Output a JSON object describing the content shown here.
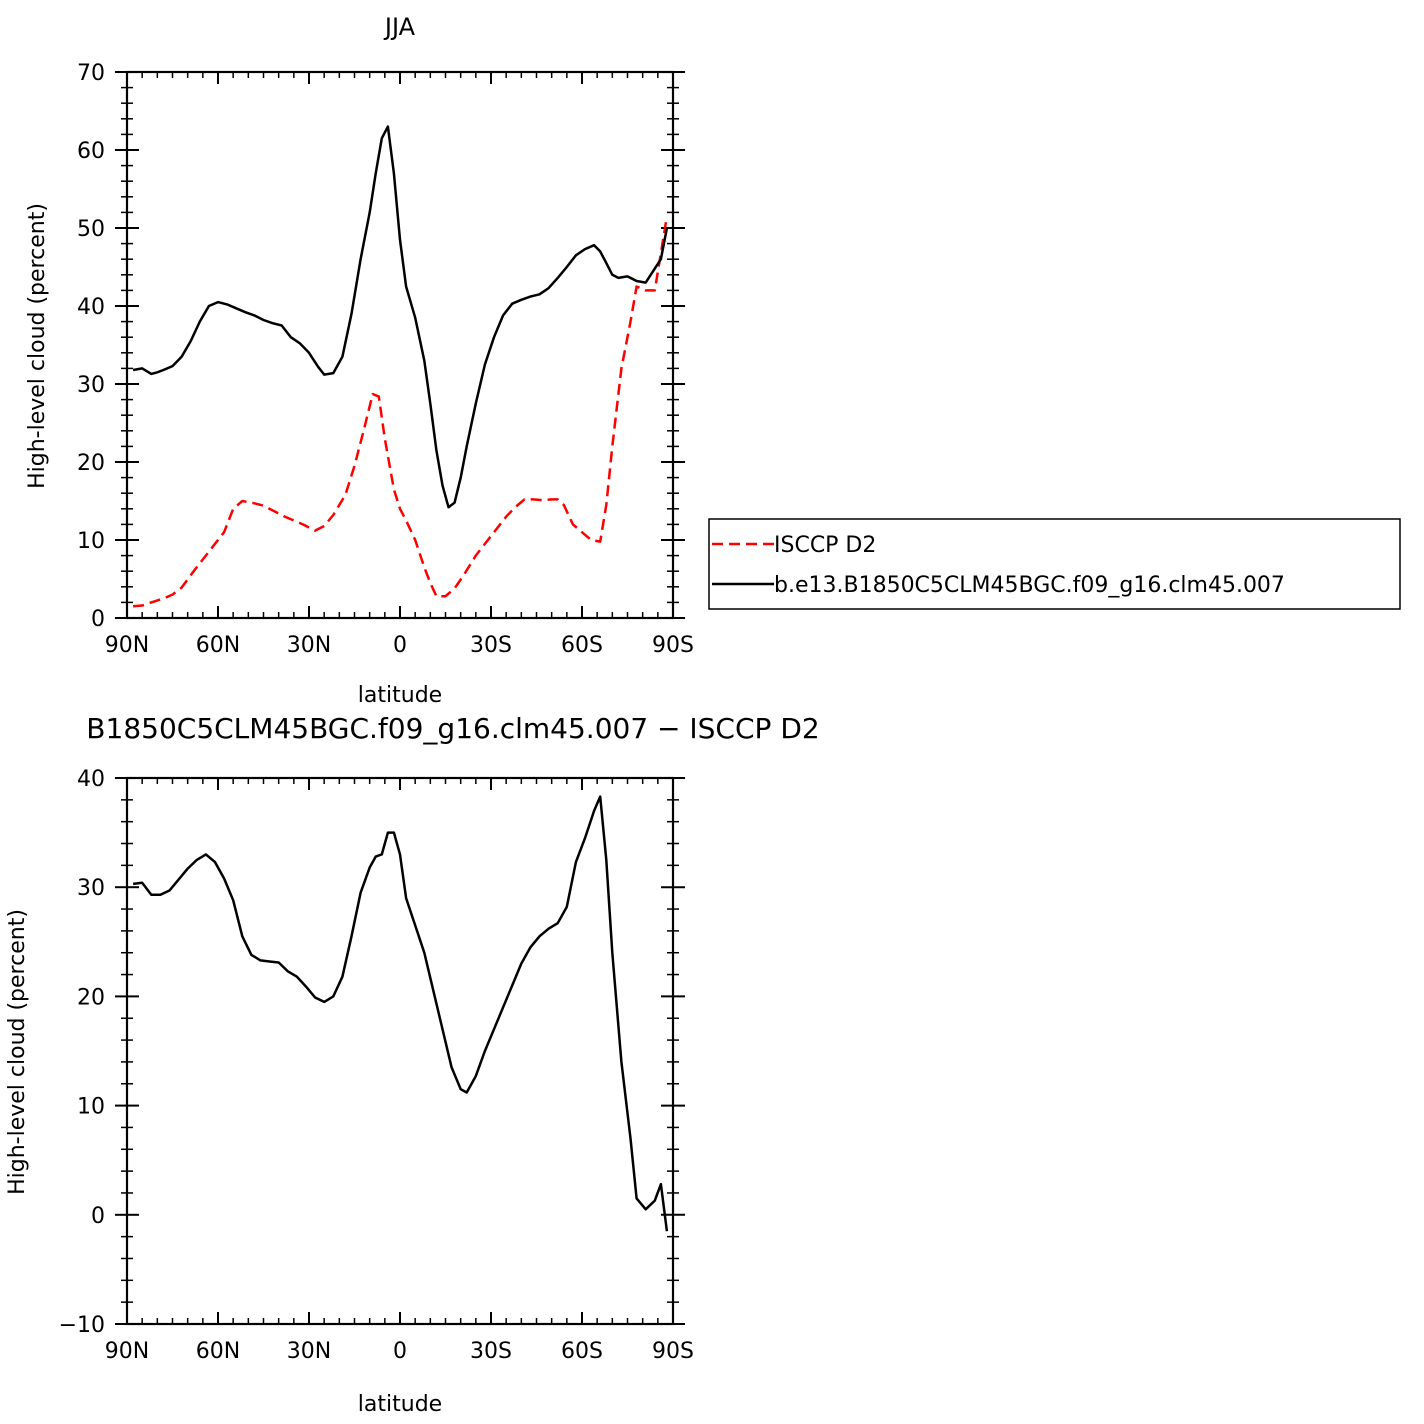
{
  "chart_data": [
    {
      "type": "line",
      "title": "JJA",
      "xlabel": "latitude",
      "ylabel": "High-level cloud (percent)",
      "xlim": [
        90,
        -90
      ],
      "ylim": [
        0,
        70
      ],
      "x_ticks": [
        90,
        60,
        30,
        0,
        -30,
        -60,
        -90
      ],
      "x_tick_labels": [
        "90N",
        "60N",
        "30N",
        "0",
        "30S",
        "60S",
        "90S"
      ],
      "y_ticks": [
        0,
        10,
        20,
        30,
        40,
        50,
        60,
        70
      ],
      "y_tick_labels": [
        "0",
        "10",
        "20",
        "30",
        "40",
        "50",
        "60",
        "70"
      ],
      "legend_position": "right",
      "series": [
        {
          "name": "ISCCP D2",
          "color": "#ff0000",
          "dash": "dashed",
          "x": [
            88,
            85,
            82,
            78,
            75,
            72,
            68,
            65,
            62,
            58,
            55,
            52,
            48,
            45,
            42,
            38,
            35,
            32,
            28,
            25,
            22,
            18,
            15,
            12,
            9,
            7,
            5,
            2,
            0,
            -2,
            -5,
            -8,
            -10,
            -12,
            -15,
            -18,
            -21,
            -25,
            -28,
            -31,
            -35,
            -38,
            -41,
            -44,
            -47,
            -50,
            -52,
            -54,
            -57,
            -60,
            -63,
            -66,
            -68,
            -70,
            -73,
            -76,
            -78,
            -81,
            -84,
            -88
          ],
          "y": [
            1.5,
            1.6,
            2.0,
            2.5,
            3.0,
            3.9,
            6.0,
            7.5,
            9.0,
            11.0,
            14.0,
            15.0,
            14.7,
            14.4,
            13.8,
            13.0,
            12.5,
            12.0,
            11.2,
            11.8,
            13.2,
            15.8,
            19.5,
            24.0,
            28.7,
            28.4,
            23.0,
            16.5,
            14.0,
            12.5,
            10.0,
            6.5,
            4.5,
            2.8,
            2.8,
            3.8,
            5.5,
            8.0,
            9.5,
            11.0,
            13.0,
            14.2,
            15.2,
            15.2,
            15.1,
            15.2,
            15.2,
            14.5,
            12.0,
            11.0,
            10.0,
            9.8,
            14.5,
            22.0,
            32.0,
            38.0,
            42.5,
            42.0,
            42.0,
            51.5
          ]
        },
        {
          "name": "b.e13.B1850C5CLM45BGC.f09_g16.clm45.007",
          "color": "#000000",
          "dash": "solid",
          "x": [
            88,
            85,
            82,
            80,
            78,
            75,
            72,
            69,
            66,
            63,
            60,
            57,
            54,
            51,
            48,
            45,
            42,
            39,
            36,
            33,
            30,
            27,
            25,
            22,
            19,
            16,
            13,
            10,
            8,
            6,
            4,
            2,
            0,
            -2,
            -5,
            -8,
            -10,
            -12,
            -14,
            -16,
            -18,
            -20,
            -22,
            -25,
            -28,
            -31,
            -34,
            -37,
            -40,
            -43,
            -46,
            -49,
            -52,
            -55,
            -58,
            -61,
            -64,
            -66,
            -68,
            -70,
            -72,
            -75,
            -78,
            -81,
            -84,
            -86,
            -88
          ],
          "y": [
            31.8,
            32.0,
            31.3,
            31.5,
            31.8,
            32.3,
            33.5,
            35.5,
            38.0,
            40.0,
            40.5,
            40.2,
            39.7,
            39.2,
            38.8,
            38.2,
            37.8,
            37.5,
            36.0,
            35.2,
            34.0,
            32.2,
            31.2,
            31.4,
            33.5,
            39.0,
            46.0,
            52.0,
            57.0,
            61.5,
            63.0,
            57.0,
            48.5,
            42.5,
            38.5,
            33.0,
            27.5,
            21.5,
            17.0,
            14.2,
            14.8,
            18.0,
            22.0,
            27.5,
            32.5,
            36.0,
            38.8,
            40.3,
            40.8,
            41.2,
            41.5,
            42.3,
            43.6,
            45.0,
            46.5,
            47.3,
            47.8,
            47.0,
            45.5,
            44.0,
            43.6,
            43.8,
            43.2,
            43.0,
            44.8,
            46.0,
            50.0
          ]
        }
      ]
    },
    {
      "type": "line",
      "title": "B1850C5CLM45BGC.f09_g16.clm45.007 − ISCCP D2",
      "xlabel": "latitude",
      "ylabel": "High-level cloud (percent)",
      "xlim": [
        90,
        -90
      ],
      "ylim": [
        -10,
        40
      ],
      "x_ticks": [
        90,
        60,
        30,
        0,
        -30,
        -60,
        -90
      ],
      "x_tick_labels": [
        "90N",
        "60N",
        "30N",
        "0",
        "30S",
        "60S",
        "90S"
      ],
      "y_ticks": [
        -10,
        0,
        10,
        20,
        30,
        40
      ],
      "y_tick_labels": [
        "−10",
        "0",
        "10",
        "20",
        "30",
        "40"
      ],
      "series": [
        {
          "color": "#000000",
          "dash": "solid",
          "x": [
            88,
            85,
            82,
            79,
            76,
            73,
            70,
            67,
            64,
            61,
            58,
            55,
            52,
            49,
            46,
            43,
            40,
            37,
            34,
            31,
            28,
            25,
            22,
            19,
            16,
            13,
            10,
            8,
            6,
            4,
            2,
            0,
            -2,
            -5,
            -8,
            -11,
            -14,
            -17,
            -20,
            -22,
            -25,
            -28,
            -31,
            -34,
            -37,
            -40,
            -43,
            -46,
            -49,
            -52,
            -55,
            -58,
            -61,
            -64,
            -66,
            -68,
            -70,
            -73,
            -76,
            -78,
            -81,
            -84,
            -86,
            -88
          ],
          "y": [
            30.3,
            30.4,
            29.3,
            29.3,
            29.7,
            30.7,
            31.7,
            32.5,
            33.0,
            32.3,
            30.8,
            28.8,
            25.5,
            23.8,
            23.3,
            23.2,
            23.1,
            22.3,
            21.8,
            20.9,
            19.9,
            19.5,
            20.0,
            21.8,
            25.5,
            29.5,
            31.8,
            32.8,
            33.0,
            35.0,
            35.0,
            33.0,
            29.0,
            26.5,
            24.0,
            20.5,
            17.0,
            13.5,
            11.5,
            11.2,
            12.7,
            15.0,
            17.0,
            19.0,
            21.0,
            23.0,
            24.5,
            25.5,
            26.2,
            26.7,
            28.2,
            32.3,
            34.5,
            37.0,
            38.3,
            32.5,
            24.0,
            14.0,
            7.0,
            1.5,
            0.5,
            1.3,
            2.8,
            -1.5
          ]
        }
      ]
    }
  ]
}
